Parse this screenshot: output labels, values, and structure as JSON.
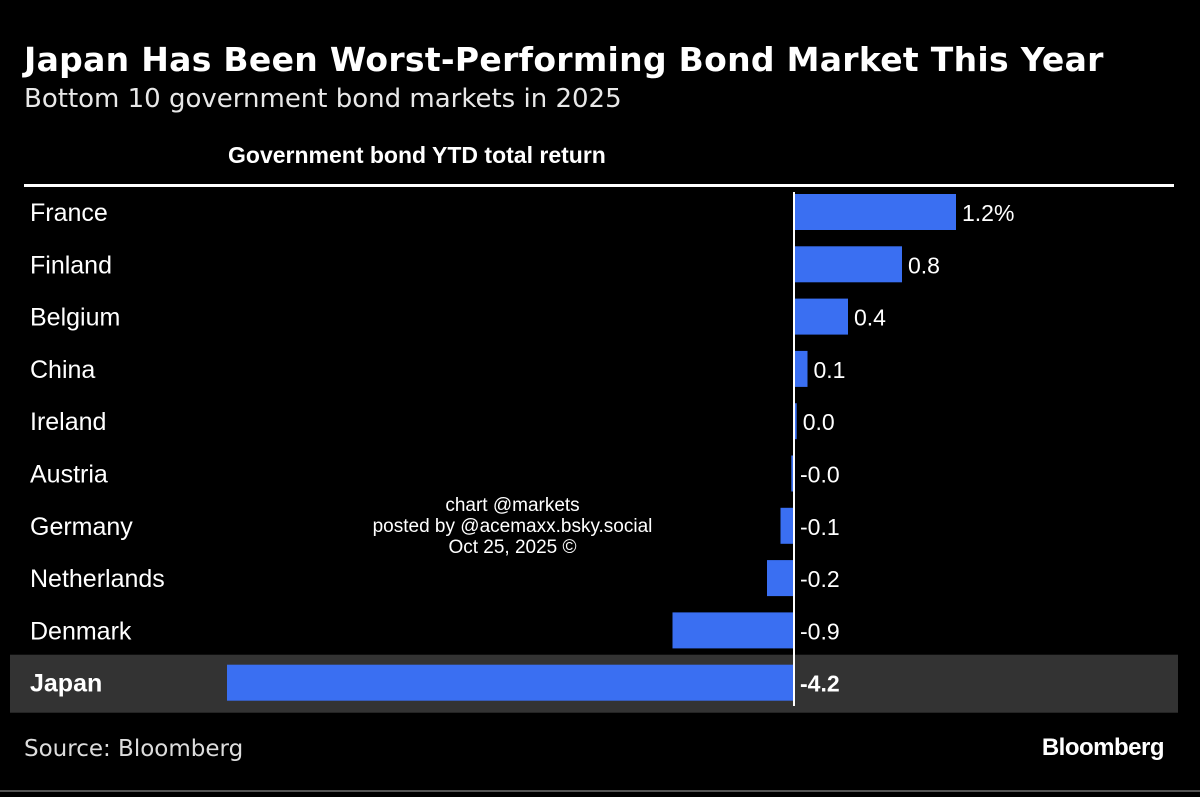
{
  "chart_data": {
    "type": "bar",
    "orientation": "horizontal",
    "title": "Japan Has Been Worst-Performing Bond Market This Year",
    "subtitle": "Bottom 10 government bond markets in 2025",
    "column_header": "Government bond YTD total return",
    "categories": [
      "France",
      "Finland",
      "Belgium",
      "China",
      "Ireland",
      "Austria",
      "Germany",
      "Netherlands",
      "Denmark",
      "Japan"
    ],
    "values": [
      1.2,
      0.8,
      0.4,
      0.1,
      0.02,
      -0.02,
      -0.1,
      -0.2,
      -0.9,
      -4.2
    ],
    "value_labels": [
      "1.2%",
      "0.8",
      "0.4",
      "0.1",
      "0.0",
      "-0.0",
      "-0.1",
      "-0.2",
      "-0.9",
      "-4.2"
    ],
    "highlight": "Japan",
    "unit": "%",
    "colors": {
      "bar": "#3a6ff2",
      "highlight_band": "#333333",
      "background": "#000000"
    }
  },
  "watermark": [
    "chart @markets",
    "posted by @acemaxx.bsky.social",
    "Oct 25, 2025 ©"
  ],
  "source": "Source: Bloomberg",
  "logo": "Bloomberg"
}
